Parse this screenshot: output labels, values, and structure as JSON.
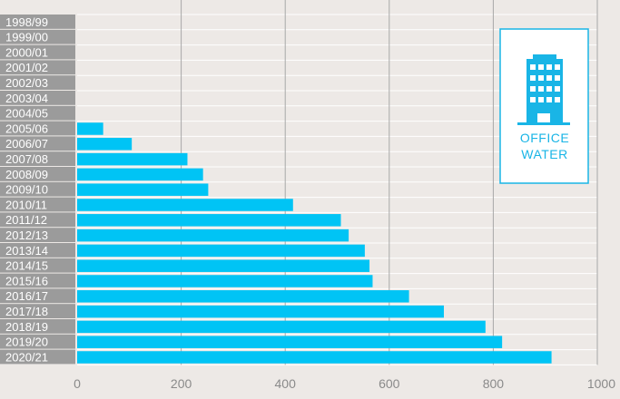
{
  "colors": {
    "bar": "#00c4f5",
    "background": "#ede9e6",
    "label_bg": "#9b9b9b",
    "grid": "#a8a8a8",
    "legend_accent": "#19b5e6"
  },
  "legend": {
    "icon": "office-building-icon",
    "line1": "OFFICE",
    "line2": "WATER"
  },
  "chart_data": {
    "type": "bar",
    "orientation": "horizontal",
    "title": "",
    "xlabel": "",
    "ylabel": "",
    "xlim": [
      0,
      1000
    ],
    "xticks": [
      0,
      200,
      400,
      600,
      800,
      1000
    ],
    "grid": true,
    "legend_placement": "top-right",
    "categories": [
      "1998/99",
      "1999/00",
      "2000/01",
      "2001/02",
      "2002/03",
      "2003/04",
      "2004/05",
      "2005/06",
      "2006/07",
      "2007/08",
      "2008/09",
      "2009/10",
      "2010/11",
      "2011/12",
      "2012/13",
      "2013/14",
      "2014/15",
      "2015/16",
      "2016/17",
      "2017/18",
      "2018/19",
      "2019/20",
      "2020/21"
    ],
    "values": [
      0,
      0,
      0,
      0,
      0,
      0,
      0,
      50,
      105,
      212,
      242,
      252,
      415,
      507,
      522,
      553,
      562,
      568,
      638,
      705,
      785,
      817,
      912
    ]
  }
}
